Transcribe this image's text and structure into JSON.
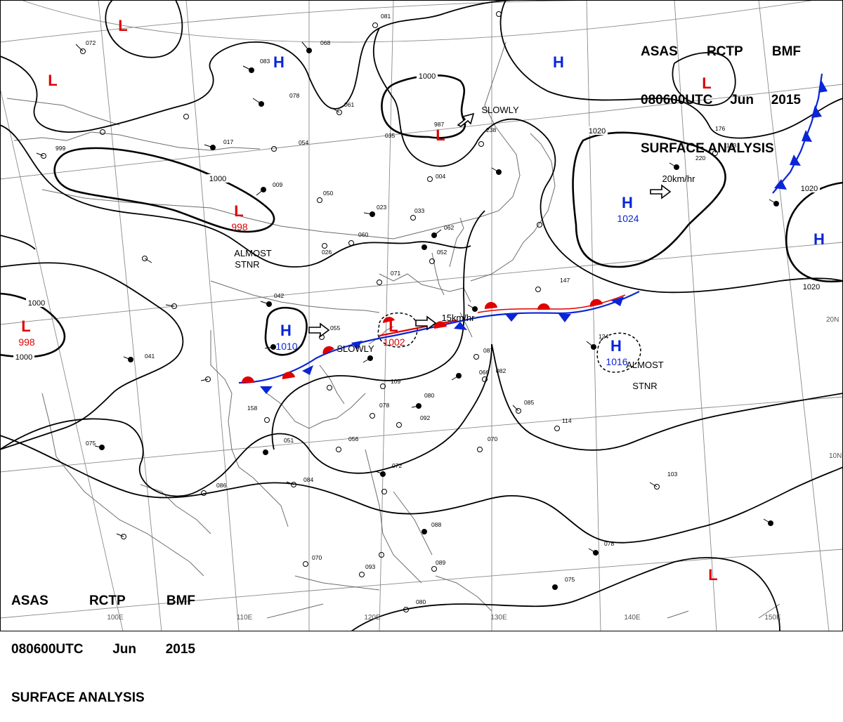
{
  "header": {
    "center": "ASAS",
    "station": "RCTP",
    "product": "BMF",
    "datetime": "080600UTC",
    "month": "Jun",
    "year": "2015",
    "title": "SURFACE ANALYSIS"
  },
  "colors": {
    "high": "#0a25d6",
    "low": "#e00000",
    "warm_front": "#e00000",
    "cold_front": "#0a25d6",
    "isobar": "#000000",
    "grid": "#888888",
    "coast": "#777777"
  },
  "pressure_systems": [
    {
      "id": "H1",
      "type": "H",
      "pressure": ""
    },
    {
      "id": "H2",
      "type": "H",
      "pressure": ""
    },
    {
      "id": "H3",
      "type": "H",
      "pressure": "1024"
    },
    {
      "id": "H4",
      "type": "H",
      "pressure": ""
    },
    {
      "id": "H5",
      "type": "H",
      "pressure": "1010"
    },
    {
      "id": "H6",
      "type": "H",
      "pressure": "1016"
    },
    {
      "id": "L1",
      "type": "L",
      "pressure": ""
    },
    {
      "id": "L2",
      "type": "L",
      "pressure": ""
    },
    {
      "id": "L3",
      "type": "L",
      "pressure": "998"
    },
    {
      "id": "L4",
      "type": "L",
      "pressure": "998"
    },
    {
      "id": "L5",
      "type": "L",
      "pressure": "1002"
    },
    {
      "id": "L6",
      "type": "L",
      "pressure": ""
    },
    {
      "id": "L7",
      "type": "L",
      "pressure": ""
    },
    {
      "id": "L8",
      "type": "L",
      "pressure": ""
    }
  ],
  "isobar_labels": [
    "1000",
    "1000",
    "1000",
    "1000",
    "1020",
    "1020",
    "1020"
  ],
  "annotations": [
    "ALMOST",
    "STNR",
    "ALMOST",
    "STNR",
    "SLOWLY",
    "SLOWLY",
    "15km/hr",
    "20km/hr"
  ],
  "latitude_labels": [
    "20N",
    "10N"
  ],
  "longitude_labels": [
    "100E",
    "110E",
    "120E",
    "130E",
    "140E",
    "150E"
  ],
  "station_values": [
    "072",
    "081",
    "068",
    "083",
    "078",
    "061",
    "035",
    "987",
    "238",
    "054",
    "017",
    "009",
    "050",
    "023",
    "033",
    "062",
    "004",
    "052",
    "060",
    "026",
    "042",
    "071",
    "055",
    "066",
    "087",
    "082",
    "109",
    "078",
    "092",
    "080",
    "085",
    "114",
    "124",
    "147",
    "158",
    "051",
    "056",
    "084",
    "086",
    "070",
    "070",
    "093",
    "089",
    "088",
    "072",
    "078",
    "075",
    "080",
    "103",
    "176",
    "193",
    "220",
    "041",
    "999",
    "075"
  ]
}
